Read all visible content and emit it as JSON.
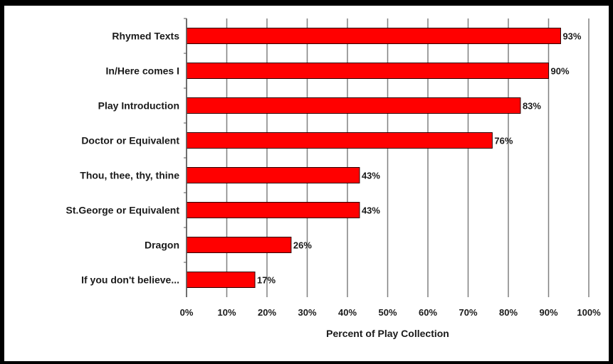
{
  "chart_data": {
    "type": "bar",
    "orientation": "horizontal",
    "categories": [
      "Rhymed Texts",
      "In/Here comes I",
      "Play Introduction",
      "Doctor or Equivalent",
      "Thou, thee, thy, thine",
      "St.George or Equivalent",
      "Dragon",
      "If you don't believe..."
    ],
    "values": [
      93,
      90,
      83,
      76,
      43,
      43,
      26,
      17
    ],
    "data_labels": [
      "93%",
      "90%",
      "83%",
      "76%",
      "43%",
      "43%",
      "26%",
      "17%"
    ],
    "xlabel": "Percent of Play Collection",
    "ylabel": "",
    "xlim": [
      0,
      100
    ],
    "x_ticks": [
      "0%",
      "10%",
      "20%",
      "30%",
      "40%",
      "50%",
      "60%",
      "70%",
      "80%",
      "90%",
      "100%"
    ],
    "grid": "vertical",
    "legend": "none",
    "colors": {
      "bar": "#ff0000",
      "bar_border": "#2a0000",
      "grid": "#808080",
      "background": "#ffffff",
      "frame": "#000000"
    }
  }
}
